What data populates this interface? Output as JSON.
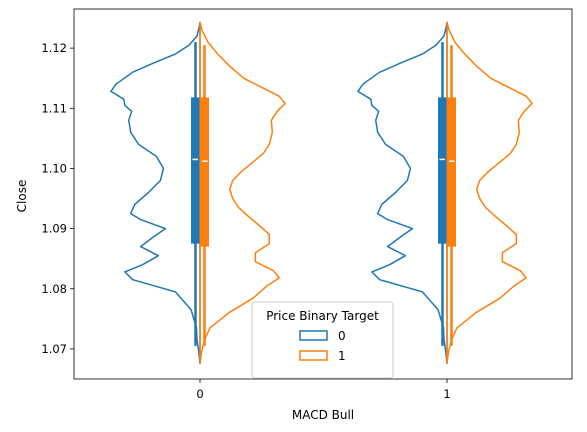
{
  "chart_data": {
    "type": "violin",
    "split": true,
    "xlabel": "MACD Bull",
    "ylabel": "Close",
    "categories": [
      "0",
      "1"
    ],
    "ylim": [
      1.065,
      1.1265
    ],
    "yticks": [
      1.07,
      1.08,
      1.09,
      1.1,
      1.11,
      1.12
    ],
    "ytick_labels": [
      "1.07",
      "1.08",
      "1.09",
      "1.10",
      "1.11",
      "1.12"
    ],
    "legend": {
      "title": "Price Binary Target",
      "position": "lower center",
      "entries": [
        "0",
        "1"
      ]
    },
    "colors": {
      "0": "#1f77b4",
      "1": "#ff7f0e"
    },
    "series": [
      {
        "name": "0",
        "side": "left",
        "color": "#1f77b4",
        "kde_y": [
          1.0676,
          1.0695,
          1.0715,
          1.0735,
          1.0765,
          1.0795,
          1.0815,
          1.0828,
          1.084,
          1.0855,
          1.087,
          1.0885,
          1.09,
          1.0915,
          1.0925,
          1.094,
          1.096,
          1.098,
          1.1,
          1.102,
          1.104,
          1.106,
          1.108,
          1.1095,
          1.1105,
          1.1115,
          1.1128,
          1.114,
          1.116,
          1.1175,
          1.119,
          1.1205,
          1.122,
          1.1235,
          1.1243
        ],
        "kde_width": [
          0.0,
          0.012,
          0.03,
          0.035,
          0.09,
          0.25,
          0.68,
          0.76,
          0.58,
          0.42,
          0.6,
          0.48,
          0.35,
          0.6,
          0.7,
          0.66,
          0.52,
          0.4,
          0.37,
          0.44,
          0.62,
          0.7,
          0.72,
          0.69,
          0.76,
          0.77,
          0.9,
          0.85,
          0.68,
          0.47,
          0.25,
          0.11,
          0.03,
          0.008,
          0.0
        ],
        "box": {
          "q1": 1.0875,
          "median": 1.1015,
          "q3": 1.1118,
          "whisker_low": 1.0705,
          "whisker_high": 1.121
        }
      },
      {
        "name": "1",
        "side": "right",
        "color": "#ff7f0e",
        "kde_y": [
          1.0676,
          1.0695,
          1.0715,
          1.0735,
          1.076,
          1.0785,
          1.0805,
          1.0818,
          1.083,
          1.0845,
          1.086,
          1.0875,
          1.089,
          1.0905,
          1.092,
          1.0935,
          1.095,
          1.0965,
          1.098,
          1.0995,
          1.101,
          1.1025,
          1.104,
          1.106,
          1.108,
          1.1095,
          1.1108,
          1.112,
          1.1135,
          1.115,
          1.117,
          1.119,
          1.121,
          1.123,
          1.1243
        ],
        "kde_width": [
          0.0,
          0.015,
          0.045,
          0.1,
          0.29,
          0.54,
          0.68,
          0.8,
          0.74,
          0.56,
          0.56,
          0.7,
          0.7,
          0.6,
          0.49,
          0.39,
          0.33,
          0.3,
          0.33,
          0.42,
          0.53,
          0.64,
          0.7,
          0.73,
          0.72,
          0.78,
          0.86,
          0.8,
          0.62,
          0.44,
          0.3,
          0.18,
          0.08,
          0.02,
          0.0
        ],
        "box": {
          "q1": 1.087,
          "median": 1.1012,
          "q3": 1.1118,
          "whisker_low": 1.0705,
          "whisker_high": 1.1205
        }
      }
    ]
  }
}
